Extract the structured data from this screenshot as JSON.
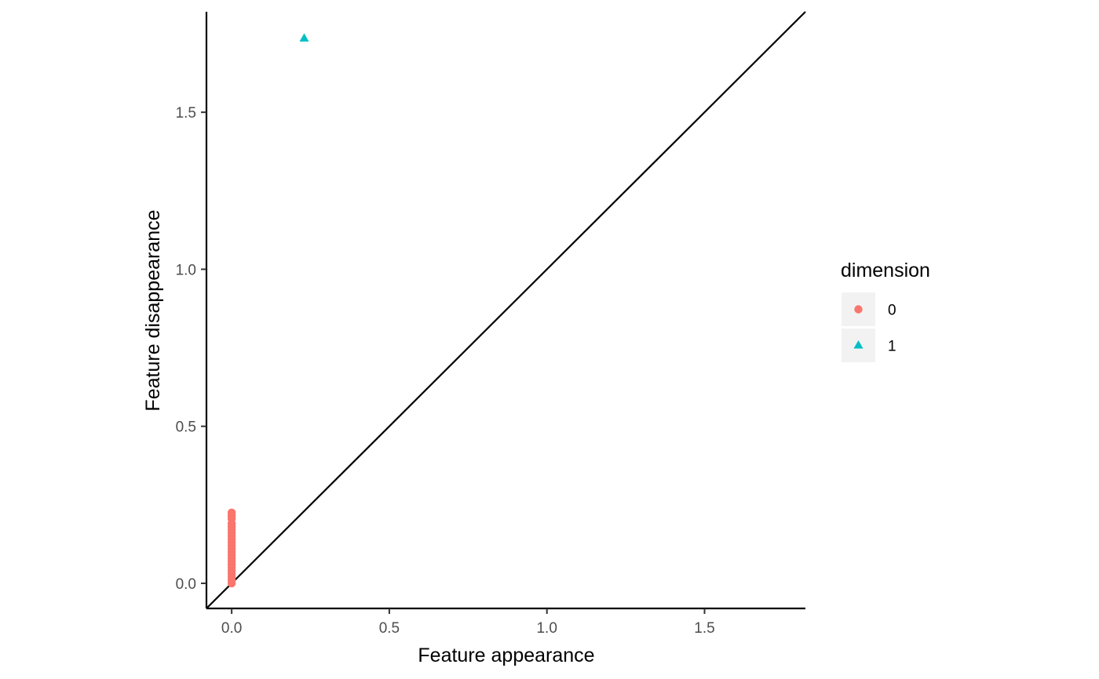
{
  "chart_data": {
    "type": "scatter",
    "xlabel": "Feature appearance",
    "ylabel": "Feature disappearance",
    "xlim": [
      -0.08,
      1.82
    ],
    "ylim": [
      -0.08,
      1.82
    ],
    "x_ticks": [
      0.0,
      0.5,
      1.0,
      1.5
    ],
    "x_tick_labels": [
      "0.0",
      "0.5",
      "1.0",
      "1.5"
    ],
    "y_ticks": [
      0.0,
      0.5,
      1.0,
      1.5
    ],
    "y_tick_labels": [
      "0.0",
      "0.5",
      "1.0",
      "1.5"
    ],
    "grid": false,
    "reference_line": "y = x",
    "legend": {
      "title": "dimension",
      "placement": "right",
      "entries": [
        {
          "label": "0",
          "shape": "circle",
          "color": "#F8766D"
        },
        {
          "label": "1",
          "shape": "triangle",
          "color": "#00BFC4"
        }
      ]
    },
    "series": [
      {
        "name": "0",
        "shape": "circle",
        "color": "#F8766D",
        "points": [
          [
            0,
            0.225
          ],
          [
            0,
            0.215
          ],
          [
            0,
            0.205
          ],
          [
            0,
            0.19
          ],
          [
            0,
            0.18
          ],
          [
            0,
            0.17
          ],
          [
            0,
            0.16
          ],
          [
            0,
            0.15
          ],
          [
            0,
            0.14
          ],
          [
            0,
            0.13
          ],
          [
            0,
            0.12
          ],
          [
            0,
            0.11
          ],
          [
            0,
            0.1
          ],
          [
            0,
            0.09
          ],
          [
            0,
            0.08
          ],
          [
            0,
            0.07
          ],
          [
            0,
            0.06
          ],
          [
            0,
            0.05
          ],
          [
            0,
            0.04
          ],
          [
            0,
            0.03
          ],
          [
            0,
            0.02
          ],
          [
            0,
            0.01
          ],
          [
            0,
            0.0
          ]
        ]
      },
      {
        "name": "1",
        "shape": "triangle",
        "color": "#00BFC4",
        "points": [
          [
            0.23,
            1.735
          ]
        ]
      }
    ]
  }
}
